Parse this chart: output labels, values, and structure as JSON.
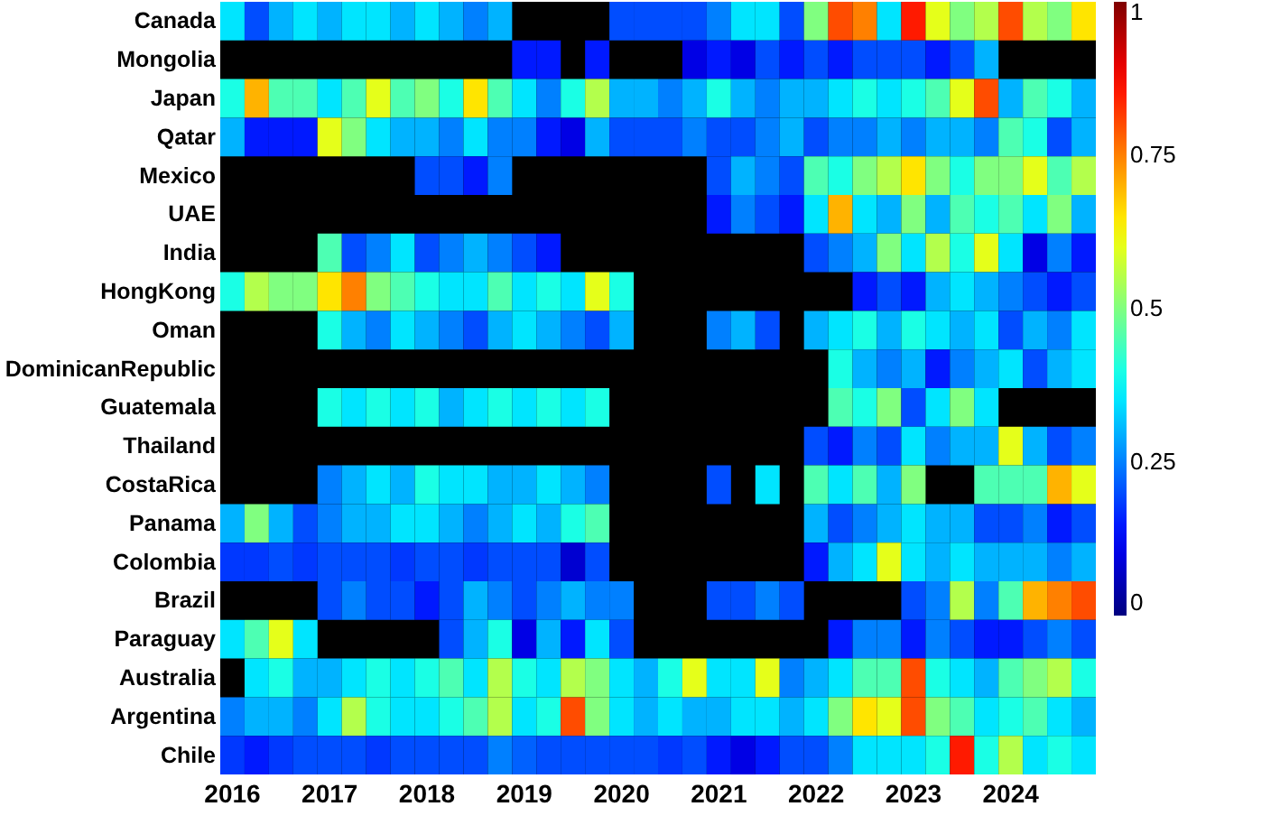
{
  "chart_data": {
    "type": "heatmap",
    "categories": [
      "2016",
      null,
      null,
      null,
      "2017",
      null,
      null,
      null,
      "2018",
      null,
      null,
      null,
      "2019",
      null,
      null,
      null,
      "2020",
      null,
      null,
      null,
      "2021",
      null,
      null,
      null,
      "2022",
      null,
      null,
      null,
      "2023",
      null,
      null,
      null,
      "2024",
      null,
      null,
      null
    ],
    "y_categories": [
      "Canada",
      "Mongolia",
      "Japan",
      "Qatar",
      "Mexico",
      "UAE",
      "India",
      "HongKong",
      "Oman",
      "DominicanRepublic",
      "Guatemala",
      "Thailand",
      "CostaRica",
      "Panama",
      "Colombia",
      "Brazil",
      "Paraguay",
      "Australia",
      "Argentina",
      "Chile"
    ],
    "cells": [
      [
        0.35,
        0.2,
        0.3,
        0.35,
        0.3,
        0.35,
        0.35,
        0.3,
        0.35,
        0.3,
        0.25,
        0.3,
        null,
        null,
        null,
        null,
        0.2,
        0.2,
        0.2,
        0.2,
        0.25,
        0.35,
        0.35,
        0.2,
        0.5,
        0.8,
        0.75,
        0.35,
        0.85,
        0.6,
        0.5,
        0.55,
        0.8,
        0.55,
        0.5,
        0.65
      ],
      [
        null,
        null,
        null,
        null,
        null,
        null,
        null,
        null,
        null,
        null,
        null,
        null,
        0.15,
        0.15,
        null,
        0.15,
        null,
        null,
        null,
        0.1,
        0.15,
        0.1,
        0.2,
        0.15,
        0.2,
        0.15,
        0.2,
        0.2,
        0.2,
        0.15,
        0.2,
        0.3,
        null,
        null,
        null,
        null
      ],
      [
        0.4,
        0.7,
        0.45,
        0.45,
        0.35,
        0.45,
        0.6,
        0.45,
        0.5,
        0.4,
        0.65,
        0.45,
        0.35,
        0.25,
        0.4,
        0.55,
        0.3,
        0.3,
        0.25,
        0.3,
        0.4,
        0.3,
        0.25,
        0.3,
        0.3,
        0.35,
        0.4,
        0.35,
        0.4,
        0.45,
        0.6,
        0.8,
        0.3,
        0.45,
        0.4,
        0.3
      ],
      [
        0.3,
        0.15,
        0.15,
        0.15,
        0.6,
        0.5,
        0.35,
        0.3,
        0.3,
        0.25,
        0.35,
        0.25,
        0.25,
        0.15,
        0.1,
        0.3,
        0.2,
        0.2,
        0.2,
        0.25,
        0.2,
        0.2,
        0.25,
        0.3,
        0.2,
        0.25,
        0.25,
        0.3,
        0.25,
        0.3,
        0.3,
        0.25,
        0.45,
        0.4,
        0.2,
        0.3
      ],
      [
        null,
        null,
        null,
        null,
        null,
        null,
        null,
        null,
        0.2,
        0.2,
        0.15,
        0.25,
        null,
        null,
        null,
        null,
        null,
        null,
        null,
        null,
        0.2,
        0.3,
        0.25,
        0.2,
        0.45,
        0.4,
        0.5,
        0.55,
        0.65,
        0.5,
        0.4,
        0.5,
        0.5,
        0.6,
        0.45,
        0.55
      ],
      [
        null,
        null,
        null,
        null,
        null,
        null,
        null,
        null,
        null,
        null,
        null,
        null,
        null,
        null,
        null,
        null,
        null,
        null,
        null,
        null,
        0.15,
        0.25,
        0.2,
        0.15,
        0.35,
        0.7,
        0.35,
        0.3,
        0.5,
        0.3,
        0.45,
        0.4,
        0.45,
        0.35,
        0.5,
        0.3
      ],
      [
        null,
        null,
        null,
        null,
        0.45,
        0.2,
        0.25,
        0.35,
        0.2,
        0.25,
        0.3,
        0.25,
        0.2,
        0.15,
        null,
        null,
        null,
        null,
        null,
        null,
        null,
        null,
        null,
        null,
        0.2,
        0.25,
        0.3,
        0.5,
        0.35,
        0.55,
        0.4,
        0.6,
        0.35,
        0.1,
        0.25,
        0.15
      ],
      [
        0.4,
        0.55,
        0.5,
        0.5,
        0.65,
        0.75,
        0.5,
        0.45,
        0.4,
        0.35,
        0.35,
        0.45,
        0.35,
        0.4,
        0.35,
        0.6,
        0.4,
        null,
        null,
        null,
        null,
        null,
        null,
        null,
        null,
        null,
        0.15,
        0.2,
        0.15,
        0.3,
        0.35,
        0.3,
        0.25,
        0.2,
        0.15,
        0.2
      ],
      [
        null,
        null,
        null,
        null,
        0.4,
        0.3,
        0.25,
        0.35,
        0.3,
        0.25,
        0.2,
        0.3,
        0.35,
        0.3,
        0.25,
        0.2,
        0.3,
        null,
        null,
        null,
        0.25,
        0.3,
        0.2,
        null,
        0.3,
        0.35,
        0.4,
        0.3,
        0.4,
        0.35,
        0.3,
        0.35,
        0.2,
        0.3,
        0.25,
        0.35
      ],
      [
        null,
        null,
        null,
        null,
        null,
        null,
        null,
        null,
        null,
        null,
        null,
        null,
        null,
        null,
        null,
        null,
        null,
        null,
        null,
        null,
        null,
        null,
        null,
        null,
        null,
        0.4,
        0.3,
        0.25,
        0.3,
        0.15,
        0.25,
        0.3,
        0.35,
        0.2,
        0.3,
        0.35
      ],
      [
        null,
        null,
        null,
        null,
        0.4,
        0.35,
        0.4,
        0.35,
        0.4,
        0.3,
        0.35,
        0.4,
        0.35,
        0.4,
        0.35,
        0.4,
        null,
        null,
        null,
        null,
        null,
        null,
        null,
        null,
        null,
        0.45,
        0.4,
        0.5,
        0.2,
        0.35,
        0.5,
        0.35,
        null,
        null,
        null,
        null
      ],
      [
        null,
        null,
        null,
        null,
        null,
        null,
        null,
        null,
        null,
        null,
        null,
        null,
        null,
        null,
        null,
        null,
        null,
        null,
        null,
        null,
        null,
        null,
        null,
        null,
        0.2,
        0.15,
        0.25,
        0.2,
        0.35,
        0.25,
        0.3,
        0.3,
        0.6,
        0.3,
        0.2,
        0.25
      ],
      [
        null,
        null,
        null,
        null,
        0.25,
        0.3,
        0.35,
        0.3,
        0.4,
        0.35,
        0.35,
        0.3,
        0.3,
        0.35,
        0.3,
        0.25,
        null,
        null,
        null,
        null,
        0.2,
        null,
        0.35,
        null,
        0.45,
        0.35,
        0.45,
        0.3,
        0.5,
        null,
        null,
        0.45,
        0.45,
        0.45,
        0.7,
        0.6
      ],
      [
        0.3,
        0.5,
        0.3,
        0.2,
        0.25,
        0.3,
        0.3,
        0.35,
        0.35,
        0.3,
        0.25,
        0.3,
        0.35,
        0.3,
        0.4,
        0.45,
        null,
        null,
        null,
        null,
        null,
        null,
        null,
        null,
        0.3,
        0.2,
        0.25,
        0.3,
        0.35,
        0.3,
        0.3,
        0.2,
        0.2,
        0.25,
        0.15,
        0.2
      ],
      [
        0.18,
        0.18,
        0.2,
        0.18,
        0.2,
        0.2,
        0.2,
        0.18,
        0.2,
        0.2,
        0.18,
        0.2,
        0.2,
        0.2,
        0.08,
        0.2,
        null,
        null,
        null,
        null,
        null,
        null,
        null,
        null,
        0.15,
        0.3,
        0.35,
        0.6,
        0.35,
        0.3,
        0.35,
        0.3,
        0.3,
        0.3,
        0.25,
        0.3
      ],
      [
        null,
        null,
        null,
        null,
        0.2,
        0.25,
        0.2,
        0.2,
        0.15,
        0.2,
        0.3,
        0.25,
        0.2,
        0.25,
        0.3,
        0.25,
        0.25,
        null,
        null,
        null,
        0.2,
        0.2,
        0.25,
        0.2,
        null,
        null,
        null,
        null,
        0.2,
        0.25,
        0.55,
        0.25,
        0.45,
        0.7,
        0.75,
        0.8
      ],
      [
        0.35,
        0.45,
        0.6,
        0.35,
        null,
        null,
        null,
        null,
        null,
        0.2,
        0.3,
        0.4,
        0.1,
        0.3,
        0.15,
        0.35,
        0.2,
        null,
        null,
        null,
        null,
        null,
        null,
        null,
        null,
        0.15,
        0.25,
        0.25,
        0.15,
        0.25,
        0.2,
        0.15,
        0.15,
        0.2,
        0.25,
        0.2
      ],
      [
        null,
        0.35,
        0.4,
        0.3,
        0.3,
        0.35,
        0.4,
        0.35,
        0.4,
        0.45,
        0.35,
        0.55,
        0.4,
        0.35,
        0.55,
        0.5,
        0.35,
        0.3,
        0.4,
        0.6,
        0.35,
        0.35,
        0.6,
        0.25,
        0.3,
        0.35,
        0.45,
        0.45,
        0.8,
        0.4,
        0.35,
        0.3,
        0.45,
        0.5,
        0.55,
        0.4
      ],
      [
        0.25,
        0.3,
        0.3,
        0.25,
        0.35,
        0.55,
        0.4,
        0.35,
        0.35,
        0.4,
        0.45,
        0.55,
        0.35,
        0.4,
        0.8,
        0.5,
        0.35,
        0.3,
        0.35,
        0.3,
        0.3,
        0.35,
        0.35,
        0.3,
        0.35,
        0.5,
        0.65,
        0.6,
        0.8,
        0.5,
        0.45,
        0.35,
        0.4,
        0.45,
        0.35,
        0.3
      ],
      [
        0.18,
        0.15,
        0.18,
        0.2,
        0.2,
        0.2,
        0.18,
        0.2,
        0.2,
        0.2,
        0.2,
        0.25,
        0.22,
        0.2,
        0.2,
        0.2,
        0.2,
        0.2,
        0.18,
        0.2,
        0.15,
        0.1,
        0.15,
        0.2,
        0.2,
        0.25,
        0.35,
        0.35,
        0.35,
        0.4,
        0.85,
        0.4,
        0.55,
        0.35,
        0.4,
        0.35
      ]
    ],
    "clim": [
      0,
      1
    ],
    "cticks": [
      0,
      0.25,
      0.5,
      0.75,
      1
    ]
  }
}
